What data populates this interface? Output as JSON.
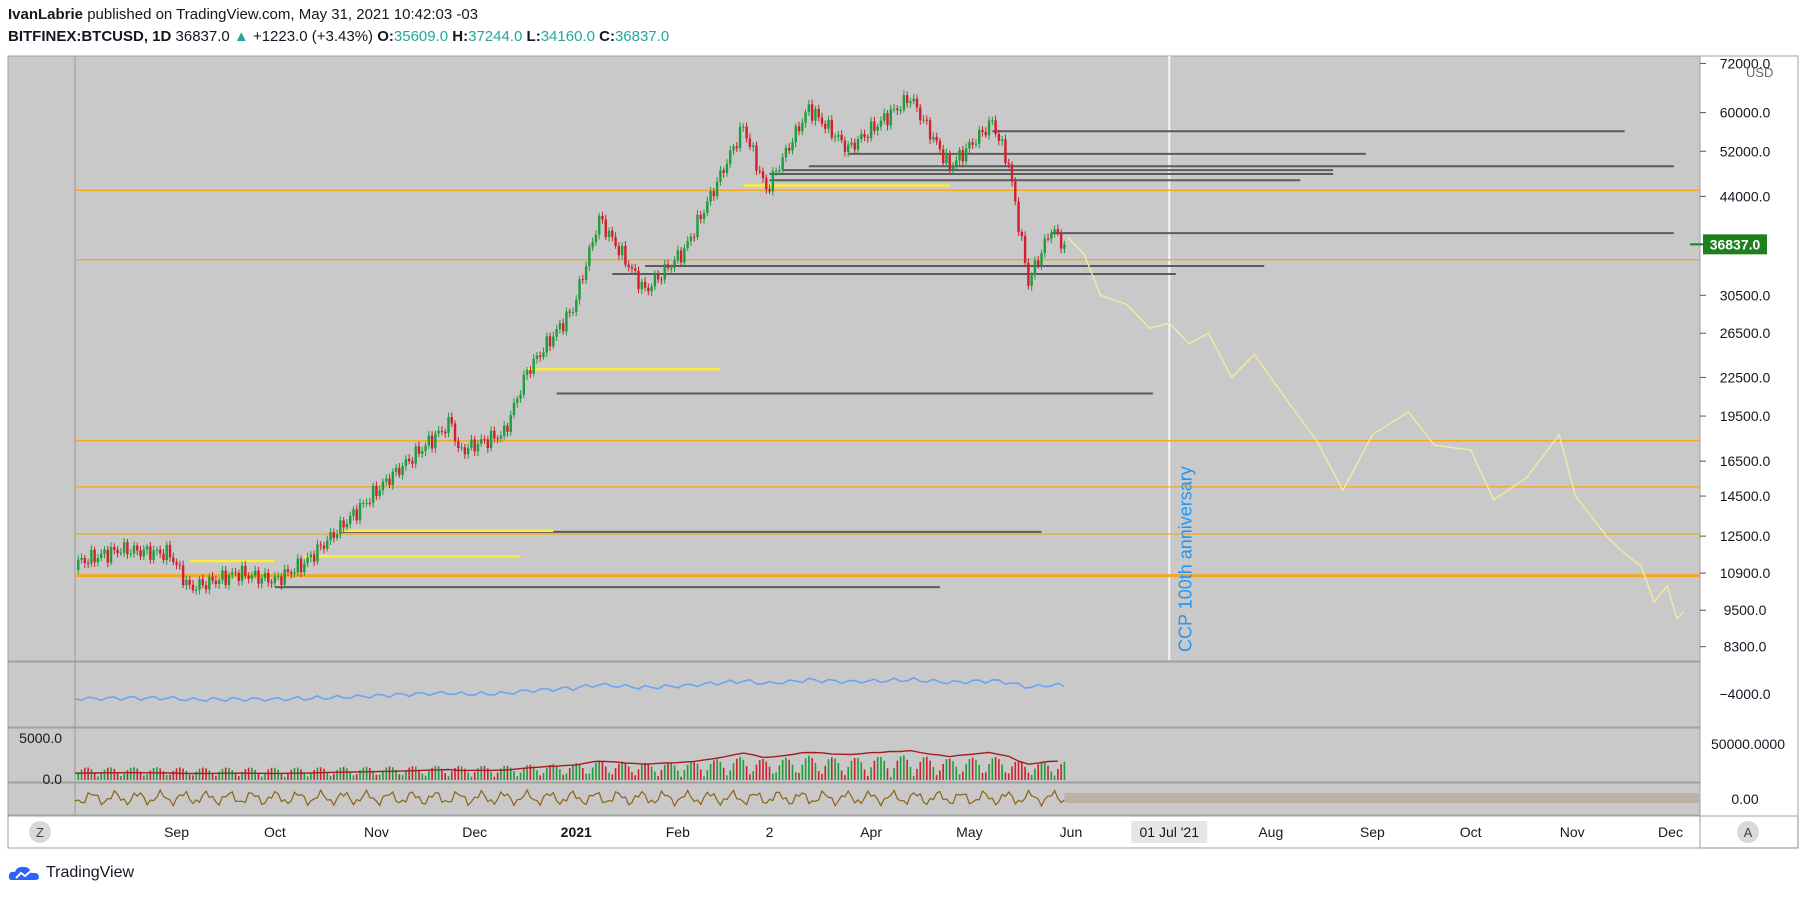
{
  "header": {
    "author": "IvanLabrie",
    "published_text": "published on TradingView.com, May 31, 2021 10:42:03 -03",
    "symbol": "BITFINEX:BTCUSD, 1D",
    "last": "36837.0",
    "change": "+1223.0 (+3.43%)",
    "o_label": "O:",
    "o": "35609.0",
    "h_label": "H:",
    "h": "37244.0",
    "l_label": "L:",
    "l": "34160.0",
    "c_label": "C:",
    "c": "36837.0"
  },
  "footer": {
    "brand": "TradingView"
  },
  "currency": "USD",
  "last_price_tag": "36837.0",
  "annotation": "CCP 100th anniversary",
  "time_marker": "01 Jul '21",
  "scale_buttons": {
    "left": "Z",
    "right": "A"
  },
  "colors": {
    "bg": "#c9c9c9",
    "up": "#1f9d3a",
    "down": "#d0202e",
    "fib": "#f5a623",
    "yellow": "#ffeb3b",
    "forecast": "#f3eaa1",
    "obv": "#6aa5ef",
    "vol_ma": "#a31d1d",
    "osc": "#8a6410",
    "tag": "#1e7f1e"
  },
  "chart_data": {
    "type": "candlestick",
    "symbol": "BITFINEX:BTCUSD",
    "interval": "1D",
    "y_scale": "log",
    "y_ticks": [
      72000,
      60000,
      52000,
      44000,
      36837,
      30500,
      26500,
      22500,
      19500,
      16500,
      14500,
      12500,
      10900,
      9500,
      8300
    ],
    "y_tick_labels": [
      "72000.0",
      "60000.0",
      "52000.0",
      "44000.0",
      "36837.0",
      "30500.0",
      "26500.0",
      "22500.0",
      "19500.0",
      "16500.0",
      "14500.0",
      "12500.0",
      "10900.0",
      "9500.0",
      "8300.0"
    ],
    "x_tick_labels": [
      {
        "date": "2020-09-01",
        "label": "Sep"
      },
      {
        "date": "2020-10-01",
        "label": "Oct"
      },
      {
        "date": "2020-11-01",
        "label": "Nov"
      },
      {
        "date": "2020-12-01",
        "label": "Dec"
      },
      {
        "date": "2021-01-01",
        "label": "2021"
      },
      {
        "date": "2021-02-01",
        "label": "Feb"
      },
      {
        "date": "2021-03-01",
        "label": "2"
      },
      {
        "date": "2021-04-01",
        "label": "Apr"
      },
      {
        "date": "2021-05-01",
        "label": "May"
      },
      {
        "date": "2021-06-01",
        "label": "Jun"
      },
      {
        "date": "2021-07-01",
        "label": "01 Jul '21"
      },
      {
        "date": "2021-08-01",
        "label": "Aug"
      },
      {
        "date": "2021-09-01",
        "label": "Sep"
      },
      {
        "date": "2021-10-01",
        "label": "Oct"
      },
      {
        "date": "2021-11-01",
        "label": "Nov"
      },
      {
        "date": "2021-12-01",
        "label": "Dec"
      }
    ],
    "x_range": [
      "2020-08-01",
      "2021-12-10"
    ],
    "price_path": [
      [
        "2020-08-01",
        11300
      ],
      [
        "2020-08-15",
        11900
      ],
      [
        "2020-08-30",
        11700
      ],
      [
        "2020-09-05",
        10300
      ],
      [
        "2020-09-20",
        10900
      ],
      [
        "2020-10-01",
        10600
      ],
      [
        "2020-10-10",
        11300
      ],
      [
        "2020-10-21",
        12900
      ],
      [
        "2020-11-05",
        15500
      ],
      [
        "2020-11-24",
        19100
      ],
      [
        "2020-11-26",
        17100
      ],
      [
        "2020-12-10",
        18300
      ],
      [
        "2020-12-17",
        23000
      ],
      [
        "2020-12-31",
        29000
      ],
      [
        "2021-01-08",
        40500
      ],
      [
        "2021-01-22",
        31000
      ],
      [
        "2021-02-03",
        36000
      ],
      [
        "2021-02-14",
        47500
      ],
      [
        "2021-02-21",
        57000
      ],
      [
        "2021-02-28",
        45000
      ],
      [
        "2021-03-13",
        61000
      ],
      [
        "2021-03-25",
        52500
      ],
      [
        "2021-04-13",
        63500
      ],
      [
        "2021-04-25",
        49000
      ],
      [
        "2021-05-08",
        58000
      ],
      [
        "2021-05-13",
        49500
      ],
      [
        "2021-05-19",
        32000
      ],
      [
        "2021-05-26",
        39000
      ],
      [
        "2021-05-30",
        36837
      ]
    ],
    "forecast_path": [
      [
        "2021-05-31",
        37800
      ],
      [
        "2021-06-05",
        35500
      ],
      [
        "2021-06-10",
        30500
      ],
      [
        "2021-06-18",
        29500
      ],
      [
        "2021-06-25",
        27000
      ],
      [
        "2021-07-01",
        27500
      ],
      [
        "2021-07-07",
        25500
      ],
      [
        "2021-07-13",
        26500
      ],
      [
        "2021-07-20",
        22500
      ],
      [
        "2021-07-27",
        24500
      ],
      [
        "2021-08-05",
        21000
      ],
      [
        "2021-08-15",
        17800
      ],
      [
        "2021-08-23",
        14800
      ],
      [
        "2021-09-01",
        18200
      ],
      [
        "2021-09-12",
        19800
      ],
      [
        "2021-09-20",
        17500
      ],
      [
        "2021-10-01",
        17200
      ],
      [
        "2021-10-08",
        14300
      ],
      [
        "2021-10-18",
        15500
      ],
      [
        "2021-10-28",
        18200
      ],
      [
        "2021-11-02",
        14500
      ],
      [
        "2021-11-12",
        12400
      ],
      [
        "2021-11-18",
        11600
      ],
      [
        "2021-11-22",
        11200
      ],
      [
        "2021-11-26",
        9800
      ],
      [
        "2021-11-30",
        10400
      ],
      [
        "2021-12-03",
        9200
      ],
      [
        "2021-12-05",
        9450
      ]
    ],
    "horizontal_levels": {
      "fib_orange": [
        45000,
        34800,
        17800,
        15000,
        12600,
        10800
      ],
      "gray": [
        {
          "price": 56000,
          "from": "2021-05-08",
          "to": "2021-11-17"
        },
        {
          "price": 51500,
          "from": "2021-03-25",
          "to": "2021-08-30"
        },
        {
          "price": 49200,
          "from": "2021-03-13",
          "to": "2021-12-02"
        },
        {
          "price": 48500,
          "from": "2021-03-05",
          "to": "2021-08-20"
        },
        {
          "price": 47800,
          "from": "2021-03-01",
          "to": "2021-08-20"
        },
        {
          "price": 46700,
          "from": "2021-03-01",
          "to": "2021-08-10"
        },
        {
          "price": 38400,
          "from": "2021-05-26",
          "to": "2021-12-02"
        },
        {
          "price": 34000,
          "from": "2021-01-22",
          "to": "2021-07-30"
        },
        {
          "price": 33000,
          "from": "2021-01-12",
          "to": "2021-07-03"
        },
        {
          "price": 21200,
          "from": "2020-12-26",
          "to": "2021-06-26"
        },
        {
          "price": 12700,
          "from": "2020-10-21",
          "to": "2021-05-23"
        },
        {
          "price": 10350,
          "from": "2020-10-01",
          "to": "2021-04-22"
        }
      ],
      "yellow": [
        {
          "price": 45800,
          "from": "2021-02-21",
          "to": "2021-04-25"
        },
        {
          "price": 23200,
          "from": "2020-12-17",
          "to": "2021-02-14"
        },
        {
          "price": 12750,
          "from": "2020-10-21",
          "to": "2020-12-25"
        },
        {
          "price": 11600,
          "from": "2020-10-10",
          "to": "2020-12-15"
        },
        {
          "price": 11400,
          "from": "2020-09-05",
          "to": "2020-10-01"
        }
      ]
    },
    "vertical_marker": {
      "date": "2021-07-01",
      "label": "CCP 100th anniversary"
    },
    "last_price": 36837.0,
    "open": 35609.0,
    "high": 37244.0,
    "low": 34160.0,
    "close": 36837.0,
    "panes": [
      {
        "name": "OBV",
        "tick_labels": [
          "−4000.0"
        ]
      },
      {
        "name": "Volume",
        "tick_labels": [
          "5000.0",
          "0.0",
          "50000.0000"
        ]
      },
      {
        "name": "Oscillator",
        "tick_labels": [
          "0.00"
        ]
      }
    ]
  }
}
